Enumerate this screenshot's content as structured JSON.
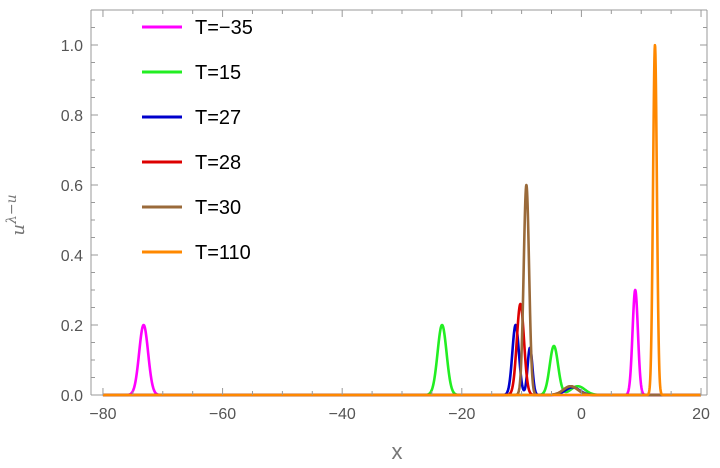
{
  "chart_data": {
    "type": "line",
    "title": "",
    "xlabel": "x",
    "ylabel": "uλ−u",
    "ylabel_base": "u",
    "ylabel_sup": "λ−u",
    "xlim": [
      -82,
      21
    ],
    "ylim": [
      0,
      1.1
    ],
    "xticks": [
      -80,
      -60,
      -40,
      -20,
      0,
      20
    ],
    "xtick_labels": [
      "−80",
      "−60",
      "−40",
      "−20",
      "0",
      "20"
    ],
    "yticks": [
      0.0,
      0.2,
      0.4,
      0.6,
      0.8,
      1.0
    ],
    "ytick_labels": [
      "0.0",
      "0.2",
      "0.4",
      "0.6",
      "0.8",
      "1.0"
    ],
    "grid": false,
    "legend_position": "top-left",
    "series": [
      {
        "name": "T=−35",
        "color": "#ff00ff",
        "peaks": [
          {
            "center": -73.2,
            "height": 0.2,
            "width": 0.75
          },
          {
            "center": 9.0,
            "height": 0.3,
            "width": 0.45
          }
        ]
      },
      {
        "name": "T=15",
        "color": "#22ee22",
        "peaks": [
          {
            "center": -23.3,
            "height": 0.2,
            "width": 0.75
          },
          {
            "center": -4.6,
            "height": 0.14,
            "width": 0.7
          },
          {
            "center": -0.6,
            "height": 0.025,
            "width": 1.2
          }
        ]
      },
      {
        "name": "T=27",
        "color": "#0000cc",
        "peaks": [
          {
            "center": -11.0,
            "height": 0.2,
            "width": 0.55
          },
          {
            "center": -8.6,
            "height": 0.135,
            "width": 0.4
          },
          {
            "center": -1.5,
            "height": 0.022,
            "width": 1.2
          }
        ]
      },
      {
        "name": "T=28",
        "color": "#dd0000",
        "peaks": [
          {
            "center": -10.2,
            "height": 0.26,
            "width": 0.6
          },
          {
            "center": -1.8,
            "height": 0.025,
            "width": 1.2
          }
        ]
      },
      {
        "name": "T=30",
        "color": "#9a6a3a",
        "peaks": [
          {
            "center": -9.2,
            "height": 0.6,
            "width": 0.45
          },
          {
            "center": -1.8,
            "height": 0.025,
            "width": 1.2
          }
        ]
      },
      {
        "name": "T=110",
        "color": "#ff8800",
        "peaks": [
          {
            "center": 12.3,
            "height": 1.0,
            "width": 0.32
          }
        ]
      }
    ]
  }
}
